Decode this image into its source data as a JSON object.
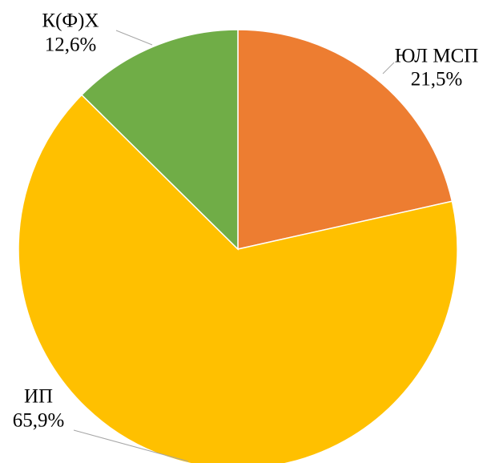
{
  "chart_data": {
    "type": "pie",
    "categories": [
      "ЮЛ МСП",
      "ИП",
      "К(Ф)Х"
    ],
    "values": [
      21.5,
      65.9,
      12.6
    ],
    "value_labels": [
      "21,5%",
      "65,9%",
      "12,6%"
    ],
    "colors": [
      "#ed7d31",
      "#ffc000",
      "#70ad47"
    ]
  }
}
